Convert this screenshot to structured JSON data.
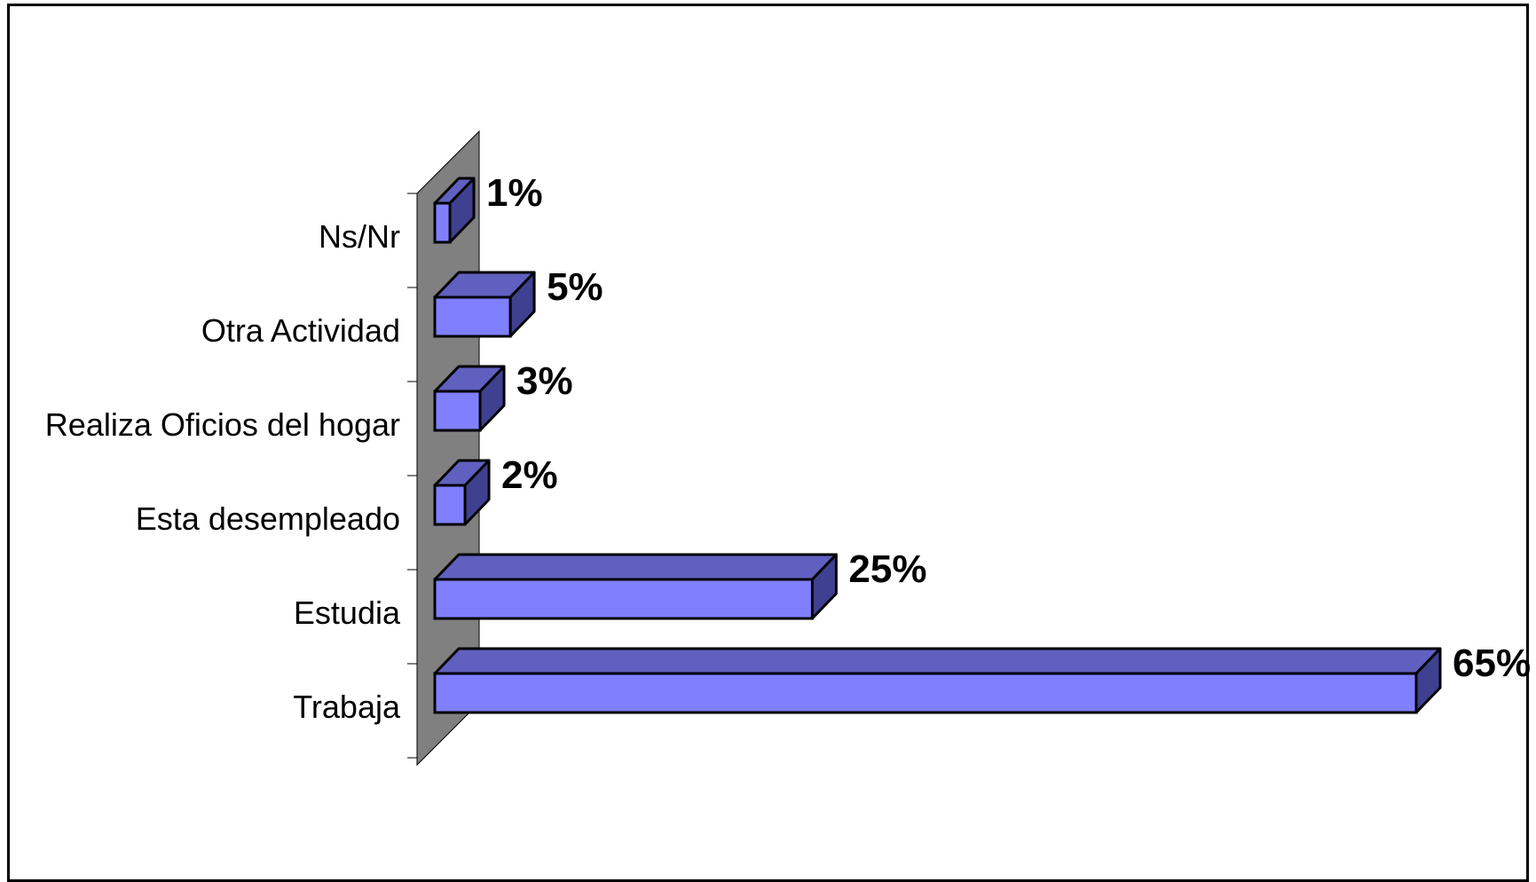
{
  "colors": {
    "bar_front": "#8080ff",
    "bar_top": "#6060c0",
    "bar_side": "#404090",
    "wall": "#808080",
    "outline": "#000000",
    "background": "#ffffff"
  },
  "chart_data": {
    "type": "bar",
    "orientation": "horizontal",
    "style": "3d",
    "categories": [
      "Ns/Nr",
      "Otra Actividad",
      "Realiza Oficios del hogar",
      "Esta desempleado",
      "Estudia",
      "Trabaja"
    ],
    "values": [
      1,
      5,
      3,
      2,
      25,
      65
    ],
    "value_labels": [
      "1%",
      "5%",
      "3%",
      "2%",
      "25%",
      "65%"
    ],
    "unit": "%",
    "title": "",
    "xlabel": "",
    "ylabel": "",
    "xlim": [
      0,
      65
    ],
    "grid": false,
    "legend": "none"
  }
}
